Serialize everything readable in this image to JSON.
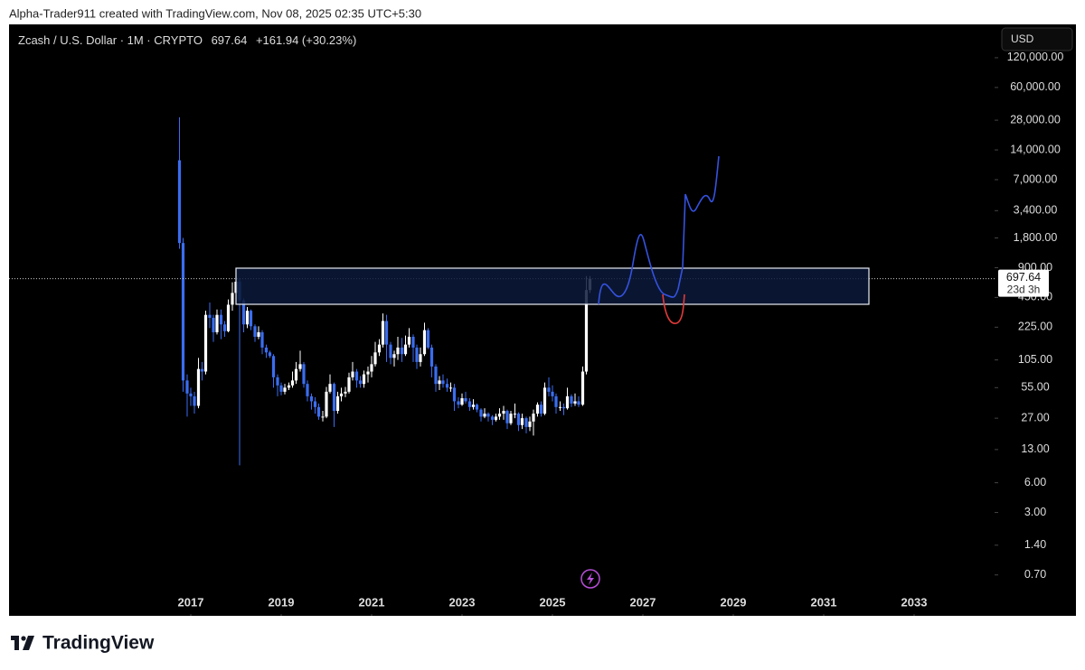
{
  "header": {
    "credit": "Alpha-Trader911 created with TradingView.com, Nov 08, 2025 02:35 UTC+5:30"
  },
  "footer": {
    "brand": "TradingView"
  },
  "chart_data": {
    "type": "candlestick",
    "title": "Zcash / U.S. Dollar · 1M · CRYPTO",
    "change_label": "+161.94 (+30.23%)",
    "countdown": "23d 3h",
    "currency": "USD",
    "log_y": true,
    "grid": false,
    "up_color": "#ffffff",
    "down_color": "#3a6df0",
    "xlim": [
      2012.98,
      2034.78
    ],
    "xticks": [
      2017,
      2019,
      2021,
      2023,
      2025,
      2027,
      2029,
      2031,
      2033
    ],
    "ylim": [
      0.27,
      261000
    ],
    "yticks": [
      {
        "value": 0.7,
        "label": "0.70"
      },
      {
        "value": 1.4,
        "label": "1.40"
      },
      {
        "value": 3,
        "label": "3.00"
      },
      {
        "value": 6,
        "label": "6.00"
      },
      {
        "value": 13,
        "label": "13.00"
      },
      {
        "value": 27,
        "label": "27.00"
      },
      {
        "value": 55,
        "label": "55.00"
      },
      {
        "value": 105,
        "label": "105.00"
      },
      {
        "value": 225,
        "label": "225.00"
      },
      {
        "value": 450,
        "label": "450.00"
      },
      {
        "value": 900,
        "label": "900.00"
      },
      {
        "value": 1800,
        "label": "1,800.00"
      },
      {
        "value": 3400,
        "label": "3,400.00"
      },
      {
        "value": 7000,
        "label": "7,000.00"
      },
      {
        "value": 14000,
        "label": "14,000.00"
      },
      {
        "value": 28000,
        "label": "28,000.00"
      },
      {
        "value": 60000,
        "label": "60,000.00"
      },
      {
        "value": 120000,
        "label": "120,000.00"
      }
    ],
    "x": [
      2016.75,
      2016.83,
      2016.92,
      2017.0,
      2017.08,
      2017.17,
      2017.25,
      2017.33,
      2017.42,
      2017.5,
      2017.58,
      2017.67,
      2017.75,
      2017.83,
      2017.92,
      2018.0,
      2018.08,
      2018.17,
      2018.25,
      2018.33,
      2018.42,
      2018.5,
      2018.58,
      2018.67,
      2018.75,
      2018.83,
      2018.92,
      2019.0,
      2019.08,
      2019.17,
      2019.25,
      2019.33,
      2019.42,
      2019.5,
      2019.58,
      2019.67,
      2019.75,
      2019.83,
      2019.92,
      2020.0,
      2020.08,
      2020.17,
      2020.25,
      2020.33,
      2020.42,
      2020.5,
      2020.58,
      2020.67,
      2020.75,
      2020.83,
      2020.92,
      2021.0,
      2021.08,
      2021.17,
      2021.25,
      2021.33,
      2021.42,
      2021.5,
      2021.58,
      2021.67,
      2021.75,
      2021.83,
      2021.92,
      2022.0,
      2022.08,
      2022.17,
      2022.25,
      2022.33,
      2022.42,
      2022.5,
      2022.58,
      2022.67,
      2022.75,
      2022.83,
      2022.92,
      2023.0,
      2023.08,
      2023.17,
      2023.25,
      2023.33,
      2023.42,
      2023.5,
      2023.58,
      2023.67,
      2023.75,
      2023.83,
      2023.92,
      2024.0,
      2024.08,
      2024.17,
      2024.25,
      2024.33,
      2024.42,
      2024.5,
      2024.58,
      2024.67,
      2024.75,
      2024.83,
      2024.92,
      2025.0,
      2025.08,
      2025.17,
      2025.25,
      2025.33,
      2025.42,
      2025.5,
      2025.58,
      2025.67,
      2025.75,
      2025.83
    ],
    "open": [
      11000,
      1600,
      65,
      48,
      45,
      36,
      85,
      80,
      300,
      280,
      200,
      300,
      240,
      205,
      380,
      500,
      650,
      420,
      240,
      330,
      230,
      180,
      200,
      140,
      125,
      115,
      70,
      58,
      50,
      55,
      58,
      65,
      85,
      95,
      60,
      45,
      40,
      35,
      28,
      28,
      50,
      60,
      32,
      45,
      48,
      50,
      70,
      80,
      65,
      60,
      75,
      80,
      95,
      125,
      150,
      260,
      150,
      110,
      120,
      140,
      120,
      150,
      180,
      140,
      100,
      120,
      210,
      140,
      90,
      60,
      65,
      60,
      55,
      55,
      40,
      37,
      43,
      40,
      35,
      37,
      33,
      28,
      30,
      28,
      26,
      28,
      30,
      32,
      24,
      30,
      30,
      23,
      27,
      22,
      25,
      30,
      37,
      30,
      55,
      50,
      45,
      35,
      35,
      34,
      45,
      38,
      40,
      37,
      80,
      535
    ],
    "high": [
      30000,
      1800,
      75,
      55,
      50,
      110,
      100,
      330,
      400,
      300,
      340,
      340,
      260,
      430,
      640,
      890,
      700,
      440,
      360,
      340,
      240,
      230,
      210,
      150,
      130,
      120,
      75,
      62,
      60,
      62,
      80,
      100,
      130,
      100,
      65,
      48,
      44,
      38,
      32,
      56,
      75,
      62,
      50,
      55,
      56,
      78,
      100,
      85,
      72,
      82,
      90,
      115,
      160,
      170,
      310,
      300,
      160,
      130,
      180,
      175,
      185,
      220,
      190,
      150,
      140,
      250,
      220,
      150,
      95,
      72,
      75,
      68,
      62,
      60,
      44,
      48,
      50,
      43,
      42,
      38,
      34,
      34,
      31,
      29,
      30,
      34,
      36,
      33,
      32,
      38,
      31,
      30,
      28,
      28,
      33,
      39,
      40,
      62,
      70,
      58,
      48,
      40,
      38,
      55,
      47,
      48,
      45,
      90,
      740,
      740
    ],
    "low": [
      1400,
      50,
      28,
      36,
      30,
      34,
      65,
      75,
      220,
      160,
      190,
      170,
      180,
      200,
      330,
      480,
      9,
      200,
      220,
      210,
      160,
      170,
      120,
      110,
      110,
      55,
      45,
      46,
      47,
      52,
      55,
      60,
      80,
      55,
      40,
      33,
      30,
      26,
      25,
      27,
      48,
      22,
      30,
      40,
      44,
      48,
      65,
      55,
      55,
      55,
      62,
      70,
      90,
      115,
      140,
      100,
      95,
      90,
      105,
      100,
      115,
      140,
      100,
      85,
      90,
      115,
      135,
      70,
      50,
      52,
      55,
      50,
      50,
      32,
      34,
      36,
      38,
      32,
      33,
      31,
      25,
      27,
      25,
      23,
      25,
      26,
      26,
      21,
      23,
      27,
      20,
      21,
      19,
      20,
      18,
      28,
      28,
      29,
      45,
      40,
      30,
      32,
      29,
      33,
      35,
      36,
      35,
      36,
      75,
      500
    ],
    "close": [
      1600,
      65,
      48,
      45,
      36,
      85,
      80,
      300,
      280,
      200,
      300,
      240,
      205,
      380,
      500,
      650,
      420,
      240,
      330,
      230,
      180,
      200,
      140,
      125,
      115,
      70,
      58,
      50,
      55,
      58,
      65,
      85,
      95,
      60,
      45,
      40,
      35,
      28,
      28,
      50,
      60,
      32,
      45,
      48,
      50,
      70,
      80,
      65,
      60,
      75,
      80,
      95,
      125,
      150,
      260,
      150,
      110,
      120,
      140,
      120,
      150,
      180,
      140,
      100,
      120,
      210,
      140,
      90,
      60,
      65,
      60,
      55,
      55,
      40,
      37,
      43,
      40,
      35,
      37,
      33,
      28,
      30,
      28,
      26,
      28,
      30,
      32,
      24,
      30,
      30,
      23,
      27,
      22,
      25,
      30,
      37,
      30,
      55,
      50,
      45,
      35,
      35,
      34,
      45,
      38,
      40,
      37,
      80,
      535,
      697.64
    ]
  }
}
